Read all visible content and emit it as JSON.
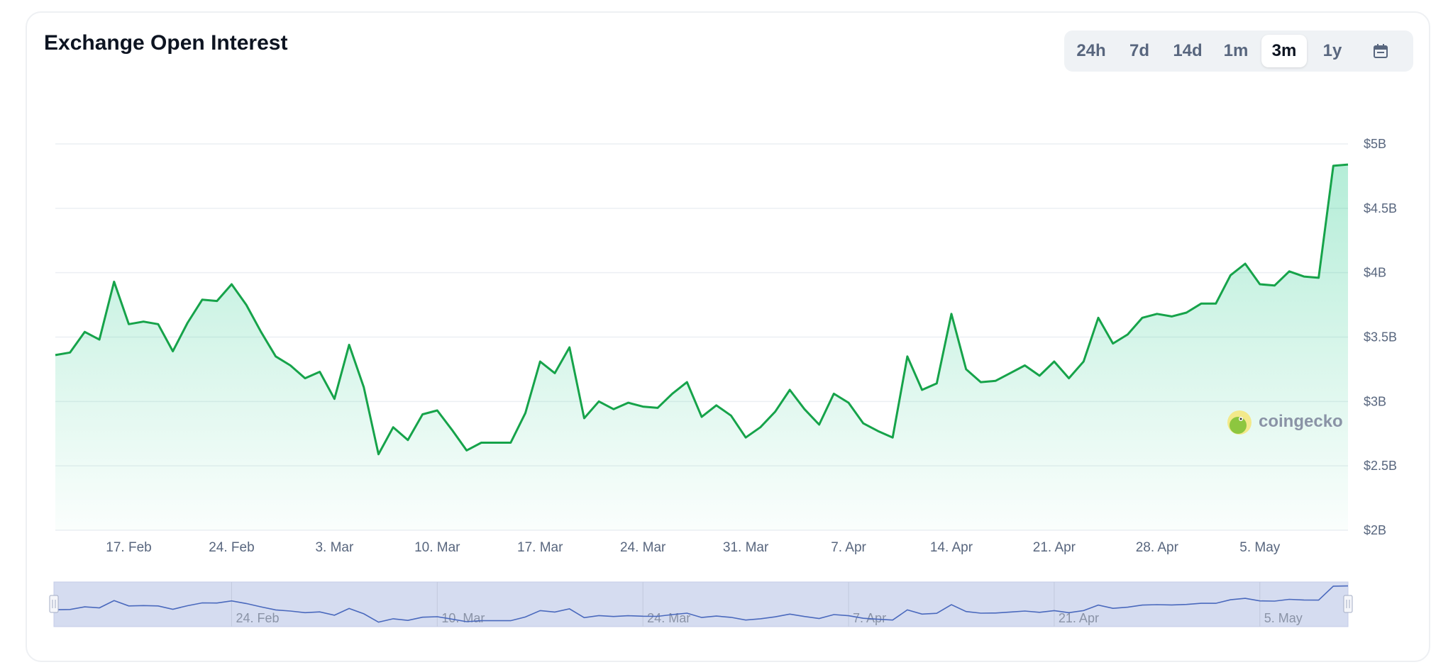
{
  "header": {
    "title": "Exchange Open Interest"
  },
  "range_selector": {
    "options": [
      "24h",
      "7d",
      "14d",
      "1m",
      "3m",
      "1y"
    ],
    "selected": "3m",
    "calendar_icon": "calendar-icon"
  },
  "watermark": {
    "text": "coingecko",
    "icon": "gecko-logo-icon"
  },
  "colors": {
    "line": "#16a34a",
    "fill": "#16c784",
    "navigator_fill": "#d5dcf0",
    "navigator_line": "#4a69bd"
  },
  "chart_data": {
    "type": "area",
    "title": "Exchange Open Interest",
    "y_unit": "USD",
    "ylim": [
      2000000000,
      5000000000
    ],
    "y_ticks": [
      {
        "value": 2000000000,
        "label": "$2B"
      },
      {
        "value": 2500000000,
        "label": "$2.5B"
      },
      {
        "value": 3000000000,
        "label": "$3B"
      },
      {
        "value": 3500000000,
        "label": "$3.5B"
      },
      {
        "value": 4000000000,
        "label": "$4B"
      },
      {
        "value": 4500000000,
        "label": "$4.5B"
      },
      {
        "value": 5000000000,
        "label": "$5B"
      }
    ],
    "x_ticks": [
      {
        "date": "2025-02-17",
        "label": "17. Feb"
      },
      {
        "date": "2025-02-24",
        "label": "24. Feb"
      },
      {
        "date": "2025-03-03",
        "label": "3. Mar"
      },
      {
        "date": "2025-03-10",
        "label": "10. Mar"
      },
      {
        "date": "2025-03-17",
        "label": "17. Mar"
      },
      {
        "date": "2025-03-24",
        "label": "24. Mar"
      },
      {
        "date": "2025-03-31",
        "label": "31. Mar"
      },
      {
        "date": "2025-04-07",
        "label": "7. Apr"
      },
      {
        "date": "2025-04-14",
        "label": "14. Apr"
      },
      {
        "date": "2025-04-21",
        "label": "21. Apr"
      },
      {
        "date": "2025-04-28",
        "label": "28. Apr"
      },
      {
        "date": "2025-05-05",
        "label": "5. May"
      }
    ],
    "navigator_ticks": [
      {
        "date": "2025-02-24",
        "label": "24. Feb"
      },
      {
        "date": "2025-03-10",
        "label": "10. Mar"
      },
      {
        "date": "2025-03-24",
        "label": "24. Mar"
      },
      {
        "date": "2025-04-07",
        "label": "7. Apr"
      },
      {
        "date": "2025-04-21",
        "label": "21. Apr"
      },
      {
        "date": "2025-05-05",
        "label": "5. May"
      }
    ],
    "grid": true,
    "legend": "none",
    "series": [
      {
        "x": [
          "2025-02-12",
          "2025-02-13",
          "2025-02-14",
          "2025-02-15",
          "2025-02-16",
          "2025-02-17",
          "2025-02-18",
          "2025-02-19",
          "2025-02-20",
          "2025-02-21",
          "2025-02-22",
          "2025-02-23",
          "2025-02-24",
          "2025-02-25",
          "2025-02-26",
          "2025-02-27",
          "2025-02-28",
          "2025-03-01",
          "2025-03-02",
          "2025-03-03",
          "2025-03-04",
          "2025-03-05",
          "2025-03-06",
          "2025-03-07",
          "2025-03-08",
          "2025-03-09",
          "2025-03-10",
          "2025-03-11",
          "2025-03-12",
          "2025-03-13",
          "2025-03-14",
          "2025-03-15",
          "2025-03-16",
          "2025-03-17",
          "2025-03-18",
          "2025-03-19",
          "2025-03-20",
          "2025-03-21",
          "2025-03-22",
          "2025-03-23",
          "2025-03-24",
          "2025-03-25",
          "2025-03-26",
          "2025-03-27",
          "2025-03-28",
          "2025-03-29",
          "2025-03-30",
          "2025-03-31",
          "2025-04-01",
          "2025-04-02",
          "2025-04-03",
          "2025-04-04",
          "2025-04-05",
          "2025-04-06",
          "2025-04-07",
          "2025-04-08",
          "2025-04-09",
          "2025-04-10",
          "2025-04-11",
          "2025-04-12",
          "2025-04-13",
          "2025-04-14",
          "2025-04-15",
          "2025-04-16",
          "2025-04-17",
          "2025-04-18",
          "2025-04-19",
          "2025-04-20",
          "2025-04-21",
          "2025-04-22",
          "2025-04-23",
          "2025-04-24",
          "2025-04-25",
          "2025-04-26",
          "2025-04-27",
          "2025-04-28",
          "2025-04-29",
          "2025-04-30",
          "2025-05-01",
          "2025-05-02",
          "2025-05-03",
          "2025-05-04",
          "2025-05-05",
          "2025-05-06",
          "2025-05-07",
          "2025-05-08",
          "2025-05-09"
        ],
        "y": [
          3360000000.0,
          3380000000.0,
          3540000000.0,
          3480000000.0,
          3930000000.0,
          3600000000.0,
          3620000000.0,
          3600000000.0,
          3390000000.0,
          3610000000.0,
          3790000000.0,
          3780000000.0,
          3910000000.0,
          3750000000.0,
          3540000000.0,
          3350000000.0,
          3280000000.0,
          3180000000.0,
          3230000000.0,
          3020000000.0,
          3440000000.0,
          3110000000.0,
          2590000000.0,
          2800000000.0,
          2700000000.0,
          2900000000.0,
          2930000000.0,
          2780000000.0,
          2620000000.0,
          2680000000.0,
          2680000000.0,
          2680000000.0,
          2910000000.0,
          3310000000.0,
          3220000000.0,
          3420000000.0,
          2870000000.0,
          3000000000.0,
          2940000000.0,
          2990000000.0,
          2960000000.0,
          2950000000.0,
          3060000000.0,
          3150000000.0,
          2880000000.0,
          2970000000.0,
          2890000000.0,
          2720000000.0,
          2800000000.0,
          2920000000.0,
          3090000000.0,
          2940000000.0,
          2820000000.0,
          3060000000.0,
          2990000000.0,
          2830000000.0,
          2770000000.0,
          2720000000.0,
          3350000000.0,
          3090000000.0,
          3140000000.0,
          3680000000.0,
          3250000000.0,
          3150000000.0,
          3160000000.0,
          3220000000.0,
          3280000000.0,
          3200000000.0,
          3310000000.0,
          3180000000.0,
          3310000000.0,
          3650000000.0,
          3450000000.0,
          3520000000.0,
          3650000000.0,
          3680000000.0,
          3660000000.0,
          3690000000.0,
          3760000000.0,
          3760000000.0,
          3980000000.0,
          4070000000.0,
          3910000000.0,
          3900000000.0,
          4010000000.0,
          3970000000.0,
          3960000000.0
        ]
      }
    ],
    "last_points_x": [
      "2025-05-10",
      "2025-05-11"
    ],
    "last_points_y": [
      4830000000.0,
      4840000000.0
    ]
  }
}
